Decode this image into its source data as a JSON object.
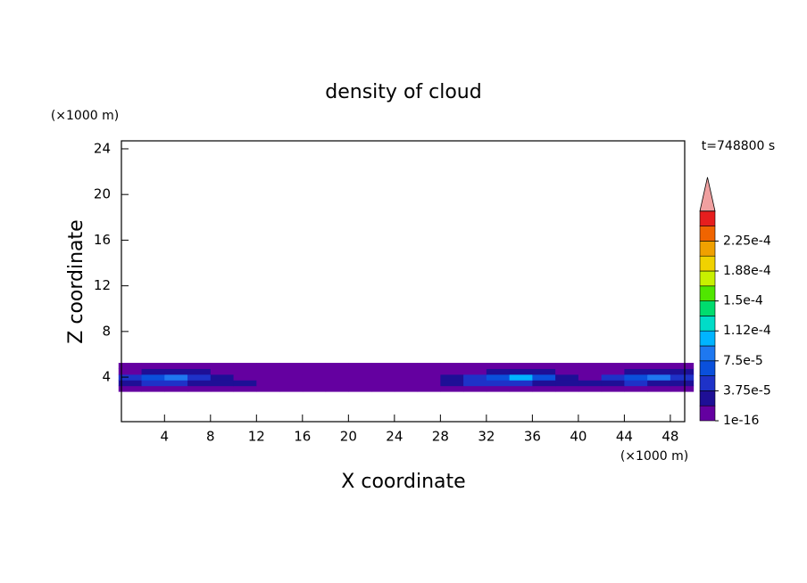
{
  "chart_data": {
    "type": "contour",
    "title": "density of cloud",
    "x_label": "X coordinate",
    "y_label": "Z coordinate",
    "x_unit": "(×1000 m)",
    "y_unit": "(×1000 m)",
    "time_label": "t=748800 s",
    "xlim": [
      0.25,
      49.25
    ],
    "ylim": [
      0.1,
      24.7
    ],
    "xticks": [
      4,
      8,
      12,
      16,
      20,
      24,
      28,
      32,
      36,
      40,
      44,
      48
    ],
    "yticks": [
      4,
      8,
      12,
      16,
      20,
      24
    ],
    "x": [
      1,
      3,
      5,
      7,
      9,
      11,
      13,
      15,
      17,
      19,
      21,
      23,
      25,
      27,
      29,
      31,
      33,
      35,
      37,
      39,
      41,
      43,
      45,
      47,
      49
    ],
    "y": [
      3,
      3.5,
      4,
      4.5,
      5
    ],
    "cell_width": 2,
    "cell_height": 0.5,
    "values": [
      [
        1e-05,
        1e-05,
        1e-05,
        1e-05,
        1e-05,
        5e-06,
        5e-06,
        5e-06,
        5e-06,
        5e-06,
        5e-06,
        5e-06,
        5e-06,
        5e-06,
        5e-06,
        1e-05,
        1e-05,
        1e-05,
        1e-05,
        5e-06,
        5e-06,
        1e-05,
        1e-05,
        1e-05,
        1e-05
      ],
      [
        3e-05,
        5e-05,
        4e-05,
        3e-05,
        2e-05,
        2e-05,
        1e-05,
        5e-06,
        5e-06,
        5e-06,
        5e-06,
        5e-06,
        5e-06,
        1e-05,
        3e-05,
        4e-05,
        5e-05,
        4e-05,
        3e-05,
        2e-05,
        2e-05,
        3e-05,
        4e-05,
        3e-05,
        2e-05
      ],
      [
        4e-05,
        6e-05,
        9e-05,
        5e-05,
        3e-05,
        5e-06,
        5e-06,
        5e-06,
        5e-06,
        5e-06,
        5e-06,
        5e-06,
        5e-06,
        5e-06,
        2e-05,
        4e-05,
        7e-05,
        0.0001,
        6e-05,
        3e-05,
        1e-05,
        4e-05,
        6e-05,
        8e-05,
        5e-05
      ],
      [
        1e-05,
        2e-05,
        2e-05,
        2e-05,
        1e-05,
        5e-06,
        5e-06,
        5e-06,
        5e-06,
        5e-06,
        5e-06,
        5e-06,
        5e-06,
        5e-06,
        5e-06,
        1e-05,
        2e-05,
        2e-05,
        2e-05,
        5e-06,
        5e-06,
        1e-05,
        2e-05,
        2e-05,
        2e-05
      ],
      [
        5e-06,
        5e-06,
        5e-06,
        5e-06,
        5e-06,
        5e-06,
        5e-06,
        5e-06,
        5e-06,
        5e-06,
        5e-06,
        5e-06,
        5e-06,
        5e-06,
        5e-06,
        5e-06,
        5e-06,
        5e-06,
        5e-06,
        5e-06,
        5e-06,
        5e-06,
        5e-06,
        5e-06,
        5e-06
      ]
    ],
    "levels": [
      1e-16,
      1.875e-05,
      3.75e-05,
      5.625e-05,
      7.5e-05,
      9.375e-05,
      0.0001125,
      0.00013125,
      0.00015,
      0.00016875,
      0.0001875,
      0.00020625,
      0.000225,
      0.00024375
    ],
    "colors": [
      "#6400a0",
      "#1e0f96",
      "#1e32c8",
      "#0a50dc",
      "#1e78f0",
      "#00b4ff",
      "#00dcc8",
      "#00dc6e",
      "#50e600",
      "#c8f000",
      "#f0d200",
      "#f0a000",
      "#f06400",
      "#e61e1e"
    ],
    "over_color": "#f0a0a0",
    "colorbar_ticks": [
      {
        "value": 1e-16,
        "label": "1e-16"
      },
      {
        "value": 3.75e-05,
        "label": "3.75e-5"
      },
      {
        "value": 7.5e-05,
        "label": "7.5e-5"
      },
      {
        "value": 0.0001125,
        "label": "1.12e-4"
      },
      {
        "value": 0.00015,
        "label": "1.5e-4"
      },
      {
        "value": 0.0001875,
        "label": "1.88e-4"
      },
      {
        "value": 0.000225,
        "label": "2.25e-4"
      }
    ]
  }
}
